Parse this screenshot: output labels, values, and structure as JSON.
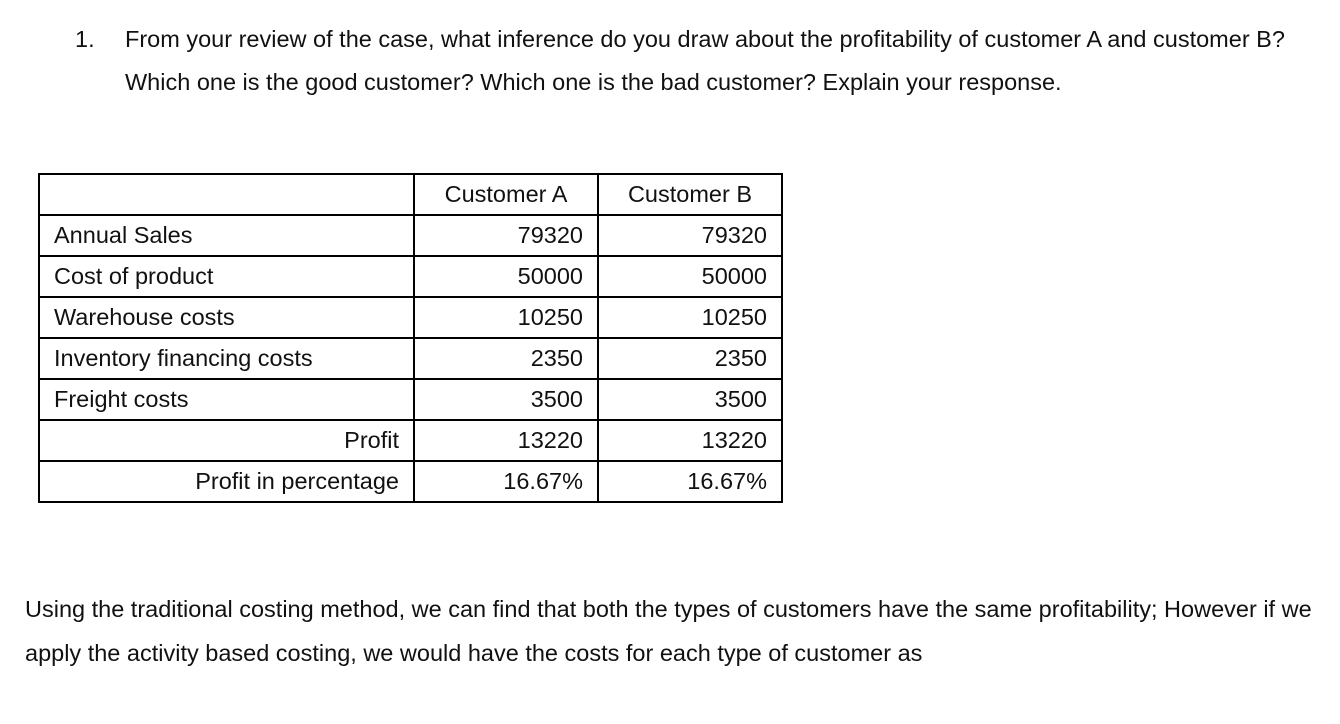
{
  "question": {
    "number": "1.",
    "text": "From your review of the case, what inference do you draw about the profitability of customer A and customer B? Which one is the good customer? Which one is the bad customer? Explain your response."
  },
  "table": {
    "headers": [
      "",
      "Customer A",
      "Customer B"
    ],
    "rows": [
      {
        "label": "Annual Sales",
        "a": "79320",
        "b": "79320"
      },
      {
        "label": "Cost of product",
        "a": "50000",
        "b": "50000"
      },
      {
        "label": "Warehouse costs",
        "a": "10250",
        "b": "10250"
      },
      {
        "label": "Inventory financing costs",
        "a": "2350",
        "b": "2350"
      },
      {
        "label": "Freight costs",
        "a": "3500",
        "b": "3500"
      },
      {
        "label": "Profit",
        "a": "13220",
        "b": "13220"
      },
      {
        "label": "Profit in percentage",
        "a": "16.67%",
        "b": "16.67%"
      }
    ]
  },
  "answer": "Using the traditional costing method, we can find that both the types of customers have the same profitability; However if we apply the activity based costing, we would have the costs for each type of customer as"
}
